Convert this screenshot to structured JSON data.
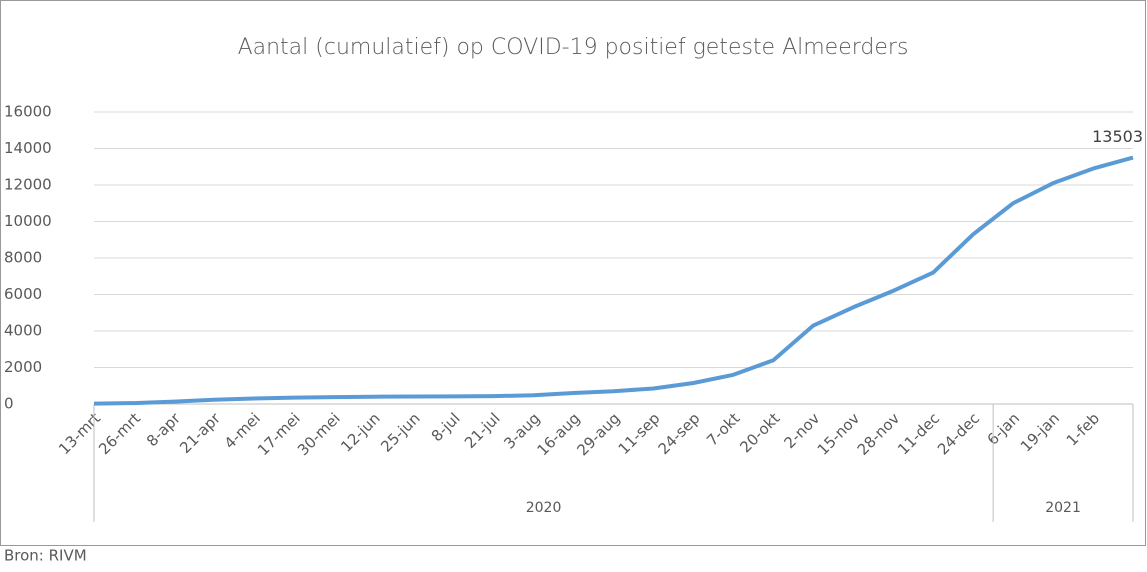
{
  "chart_data": {
    "type": "line",
    "title": "Aantal (cumulatief) op COVID-19 positief geteste Almeerders",
    "source": "Bron: RIVM",
    "categories": [
      "13-mrt",
      "26-mrt",
      "8-apr",
      "21-apr",
      "4-mei",
      "17-mei",
      "30-mei",
      "12-jun",
      "25-jun",
      "8-jul",
      "21-jul",
      "3-aug",
      "16-aug",
      "29-aug",
      "11-sep",
      "24-sep",
      "7-okt",
      "20-okt",
      "2-nov",
      "15-nov",
      "28-nov",
      "11-dec",
      "24-dec",
      "6-jan",
      "19-jan",
      "1-feb",
      null
    ],
    "groups": [
      {
        "label": "2020",
        "start": 0,
        "end": 22
      },
      {
        "label": "2021",
        "start": 23,
        "end": 26
      }
    ],
    "series": [
      {
        "name": "Almeerders",
        "color": "#5b9bd5",
        "values": [
          20,
          50,
          130,
          230,
          300,
          350,
          380,
          400,
          410,
          420,
          430,
          480,
          600,
          700,
          850,
          1150,
          1600,
          2400,
          4300,
          5300,
          6200,
          7200,
          9300,
          11000,
          12100,
          12900,
          13503
        ]
      }
    ],
    "last_label_index": 26,
    "ylim": [
      0,
      16000
    ],
    "yticks": [
      0,
      2000,
      4000,
      6000,
      8000,
      10000,
      12000,
      14000,
      16000
    ],
    "grid": true
  }
}
